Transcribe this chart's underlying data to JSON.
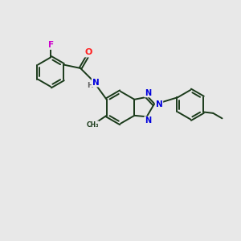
{
  "background_color": "#e8e8e8",
  "bond_color": "#1a3a1a",
  "atom_colors": {
    "F": "#cc00cc",
    "O": "#ff2222",
    "N": "#0000dd",
    "C": "#1a3a1a",
    "H": "#606060"
  },
  "bg": "#e8e8e8"
}
